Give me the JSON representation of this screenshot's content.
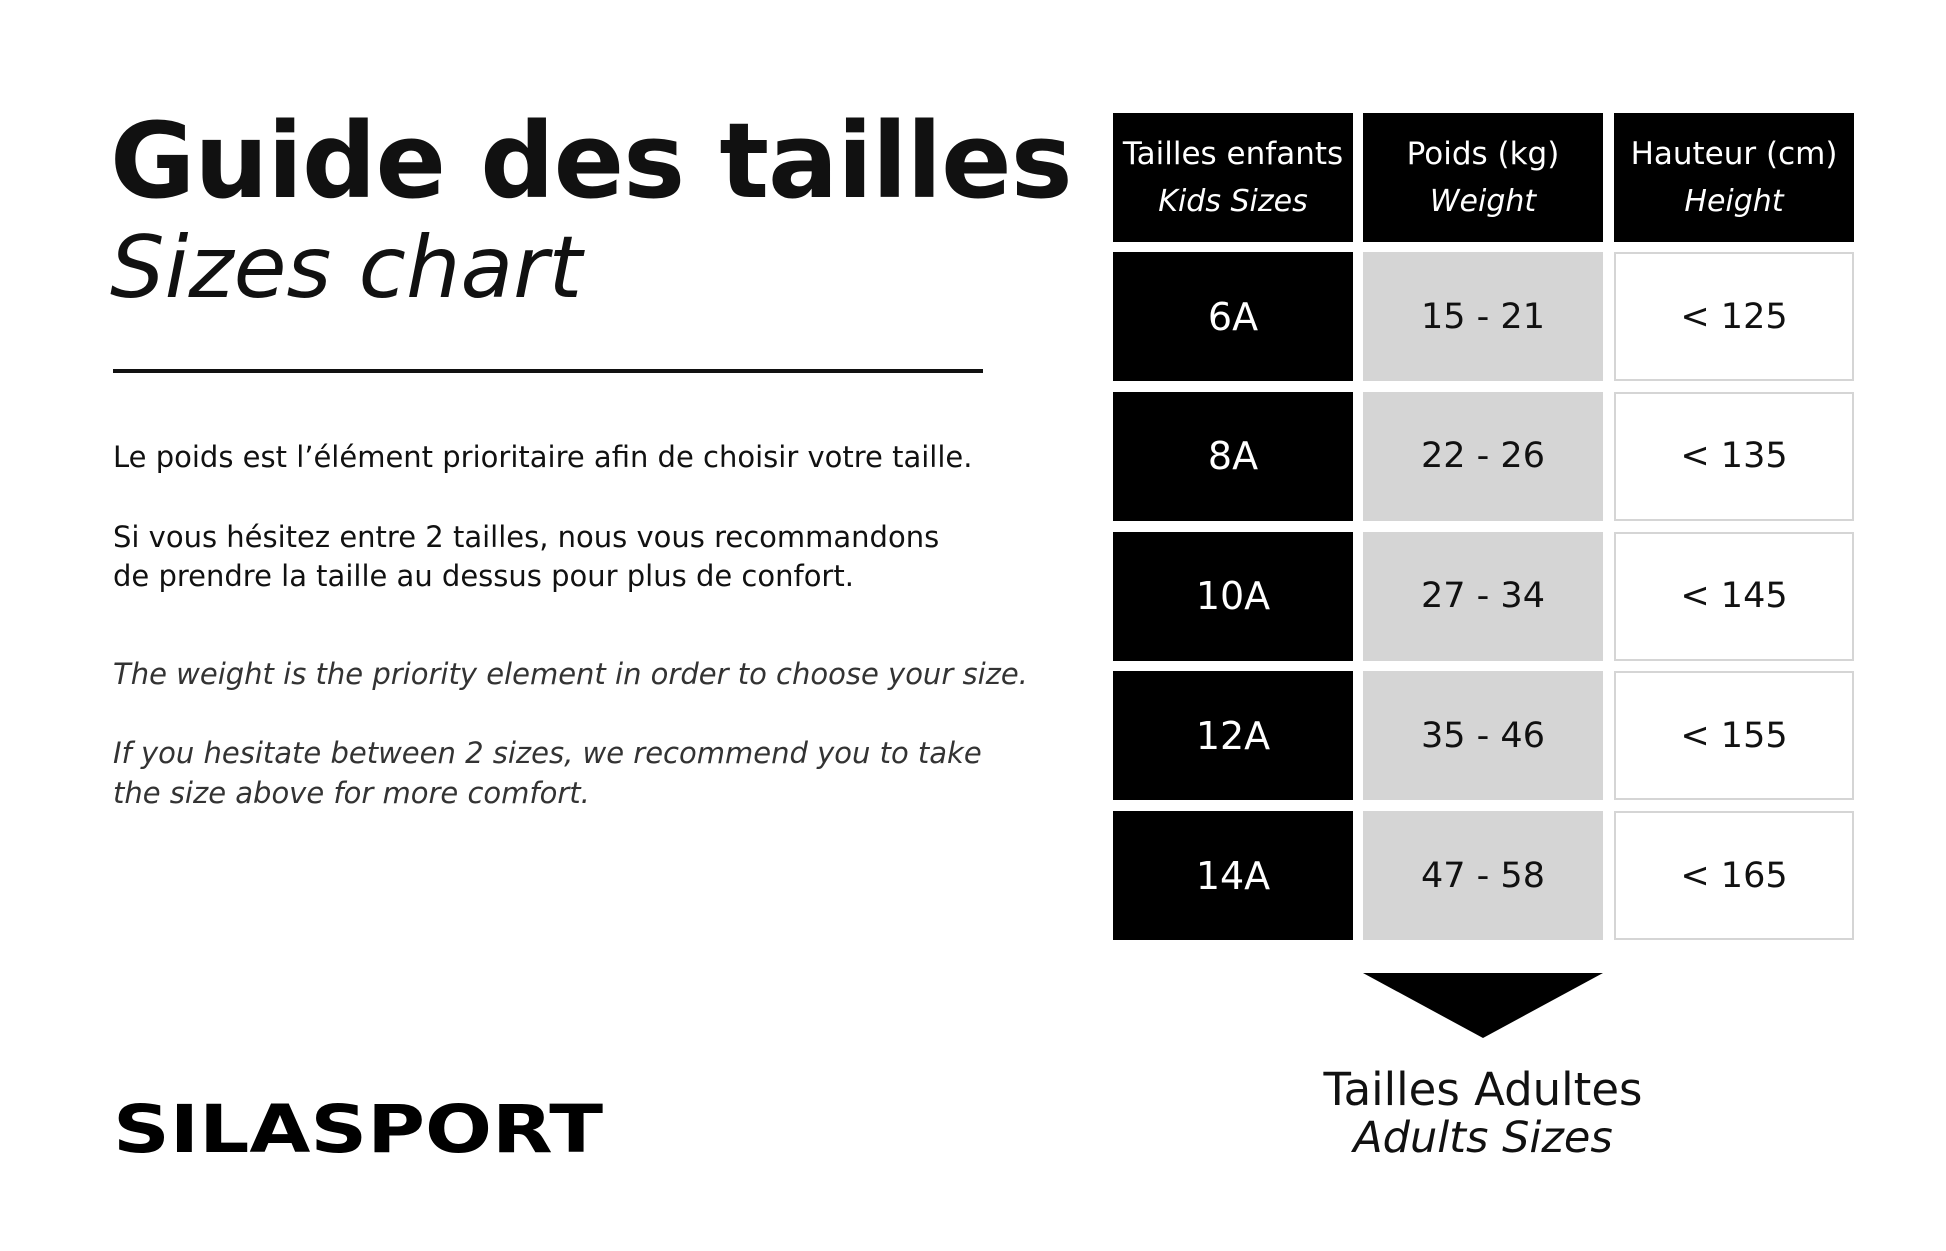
{
  "header": {
    "title": "Guide des tailles",
    "subtitle": "Sizes chart"
  },
  "notes_fr": [
    "Le poids est l’élément prioritaire afin de choisir votre taille.",
    "Si vous hésitez entre 2 tailles, nous vous recommandons",
    "de prendre la taille au dessus pour plus de confort."
  ],
  "notes_en": [
    "The weight is the priority element in order to choose your size.",
    "If you hesitate between 2 sizes, we recommend you to take",
    "the size above for more comfort."
  ],
  "table": {
    "columns": [
      {
        "fr": "Tailles enfants",
        "en": "Kids Sizes"
      },
      {
        "fr": "Poids (kg)",
        "en": "Weight"
      },
      {
        "fr": "Hauteur (cm)",
        "en": "Height"
      }
    ],
    "rows": [
      [
        "6A",
        "15 - 21",
        "< 125"
      ],
      [
        "8A",
        "22 - 26",
        "< 135"
      ],
      [
        "10A",
        "27 - 34",
        "< 145"
      ],
      [
        "12A",
        "35 - 46",
        "< 155"
      ],
      [
        "14A",
        "47 - 58",
        "< 165"
      ]
    ]
  },
  "footer": {
    "fr": "Tailles Adultes",
    "en": "Adults Sizes"
  },
  "logo": "SILASPORT"
}
